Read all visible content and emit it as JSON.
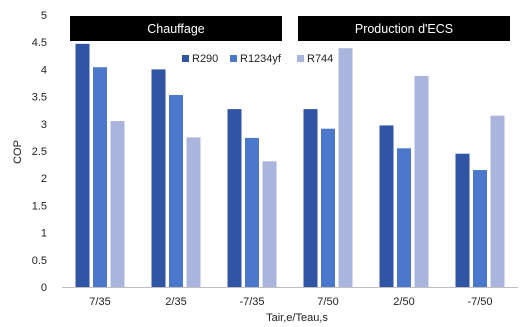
{
  "chart_data": {
    "type": "bar",
    "categories": [
      "7/35",
      "2/35",
      "-7/35",
      "7/50",
      "2/50",
      "-7/50"
    ],
    "series": [
      {
        "name": "R290",
        "color": "#2f55a4",
        "values": [
          4.47,
          4.0,
          3.27,
          3.27,
          2.97,
          2.45
        ]
      },
      {
        "name": "R1234yf",
        "color": "#4b78cb",
        "values": [
          4.04,
          3.53,
          2.74,
          2.91,
          2.55,
          2.15
        ]
      },
      {
        "name": "R744",
        "color": "#aab5de",
        "values": [
          3.05,
          2.75,
          2.31,
          4.39,
          3.88,
          3.15
        ]
      }
    ],
    "title": "",
    "xlabel": "Tair,e/Teau,s",
    "ylabel": "COP",
    "ylim": [
      0,
      5
    ],
    "yticks": [
      "0",
      "0.5",
      "1",
      "1.5",
      "2",
      "2.5",
      "3",
      "3.5",
      "4",
      "4.5",
      "5"
    ],
    "grid": false,
    "legend_position": "top-center",
    "group_banners": [
      {
        "label": "Chauffage",
        "categories": [
          "7/35",
          "2/35",
          "-7/35"
        ],
        "color": "#000000"
      },
      {
        "label": "Production d'ECS",
        "categories": [
          "7/50",
          "2/50",
          "-7/50"
        ],
        "color": "#000000"
      }
    ]
  }
}
